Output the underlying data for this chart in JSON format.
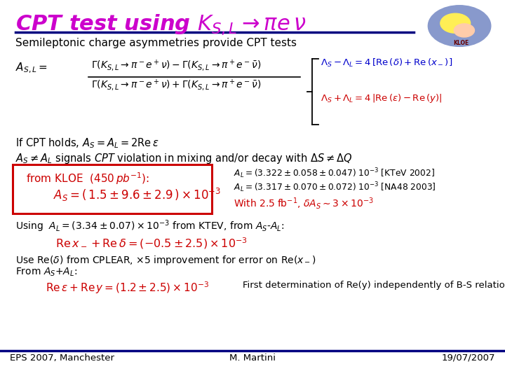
{
  "bg_color": "#ffffff",
  "title_text": "CPT test using $K_{S,L}\\rightarrow \\pi e\\,\\nu$",
  "title_color": "#cc00cc",
  "title_fontsize": 22,
  "subtitle": "Semileptonic charge asymmetries provide CPT tests",
  "brace_line1": "$\\Lambda_S - \\Lambda_L = 4\\,[\\mathrm{Re}\\,(\\delta) + \\mathrm{Re}\\,(x_-)]$",
  "brace_line2": "$\\Lambda_S + \\Lambda_L = 4\\,|\\mathrm{Re}\\,(\\varepsilon) - \\mathrm{Re}\\,(y)|$",
  "brace_line1_color": "#0000cc",
  "brace_line2_color": "#cc0000",
  "line_cpt": "If CPT holds, $A_S=A_L =2\\mathrm{Re}\\,\\varepsilon$",
  "line_signal": "$A_S\\neq A_L$ signals $\\mathit{CPT}$ violation in mixing and/or decay with $\\Delta S\\neq\\Delta Q$",
  "kloe_box_text1": "from KLOE  $\\mathit{(450\\,pb^{-1})}$:",
  "kloe_box_text2": "$A_S = (\\,1.5 \\pm 9.6 \\pm 2.9\\,)\\times 10^{-3}$",
  "kloe_color": "#cc0000",
  "kloe_box_color": "#cc0000",
  "al_line1": "$A_L = (3.322 \\pm 0.058 \\pm 0.047)\\;10^{-3}$ [KTeV 2002]",
  "al_line2": "$A_L = (3.317 \\pm 0.070 \\pm 0.072)\\;10^{-3}$ [NA48 2003]",
  "with_line": "With $2.5\\;\\mathrm{fb}^{-1}$, $\\delta A_S \\sim 3\\times10^{-3}$",
  "with_line_color": "#cc0000",
  "using_line": "Using  $A_L = (3.34 \\pm 0.07)\\times10^{-3}$ from KTEV, from $A_S$-$A_L$:",
  "red_formula1": "$\\mathrm{Re}\\,x_- + \\mathrm{Re}\\,\\delta = (-0.5 \\pm 2.5)\\times10^{-3}$",
  "red_formula1_color": "#cc0000",
  "use_line1": "Use Re($\\delta$) from CPLEAR, $\\times$5 improvement for error on Re($x_-$)",
  "use_line2": "From $A_S$+$A_L$:",
  "red_formula2": "$\\mathrm{Re}\\,\\varepsilon + \\mathrm{Re}\\,y = (1.2\\pm2.5)\\times10^{-3}$",
  "red_formula2_color": "#cc0000",
  "first_det": "First determination of Re(y) independently of B-S relation",
  "footer_left": "EPS 2007, Manchester",
  "footer_mid": "M. Martini",
  "footer_right": "19/07/2007",
  "footer_color": "#000000",
  "footer_line_color": "#000080"
}
